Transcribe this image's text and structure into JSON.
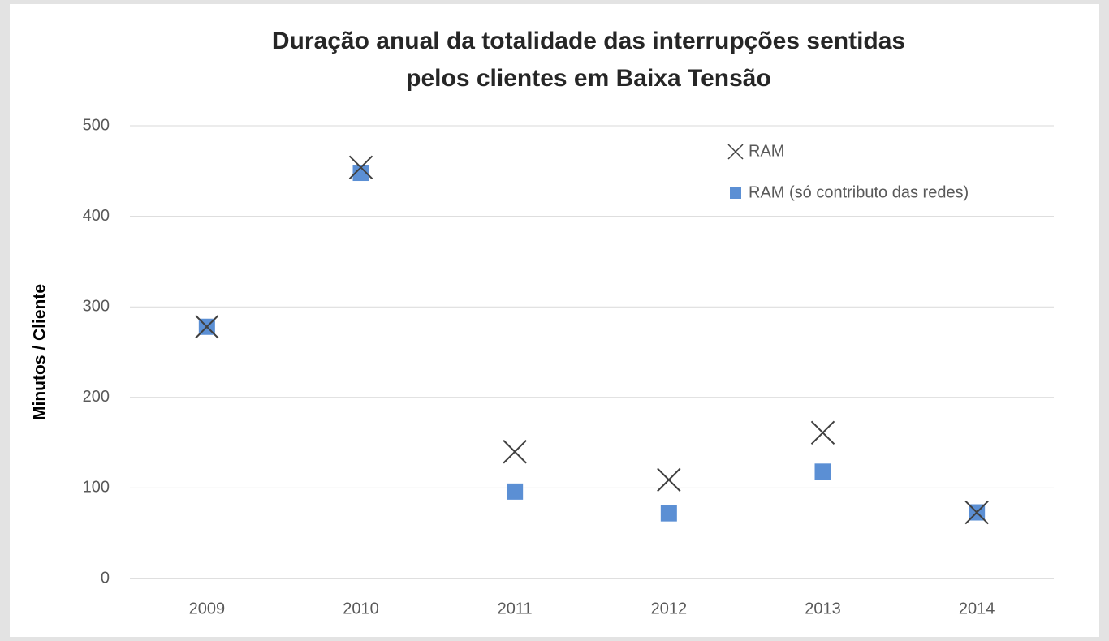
{
  "chart_data": {
    "type": "scatter",
    "title": "Duração anual da totalidade das interrupções sentidas",
    "subtitle": "pelos clientes em Baixa Tensão",
    "y_label": "Minutos / Cliente",
    "categories": [
      "2009",
      "2010",
      "2011",
      "2012",
      "2013",
      "2014"
    ],
    "series": [
      {
        "name": "RAM",
        "color": "#404040",
        "marker": "x",
        "values": [
          278,
          454,
          140,
          109,
          161,
          73
        ]
      },
      {
        "name": "RAM (só contributo das redes)",
        "color": "#5b8fd4",
        "marker": "square",
        "values": [
          278,
          448,
          96,
          72,
          118,
          73
        ]
      }
    ],
    "ylim": [
      0,
      500
    ],
    "yticks": [
      0,
      100,
      200,
      300,
      400,
      500
    ],
    "grid": true,
    "legend": "top-right"
  }
}
